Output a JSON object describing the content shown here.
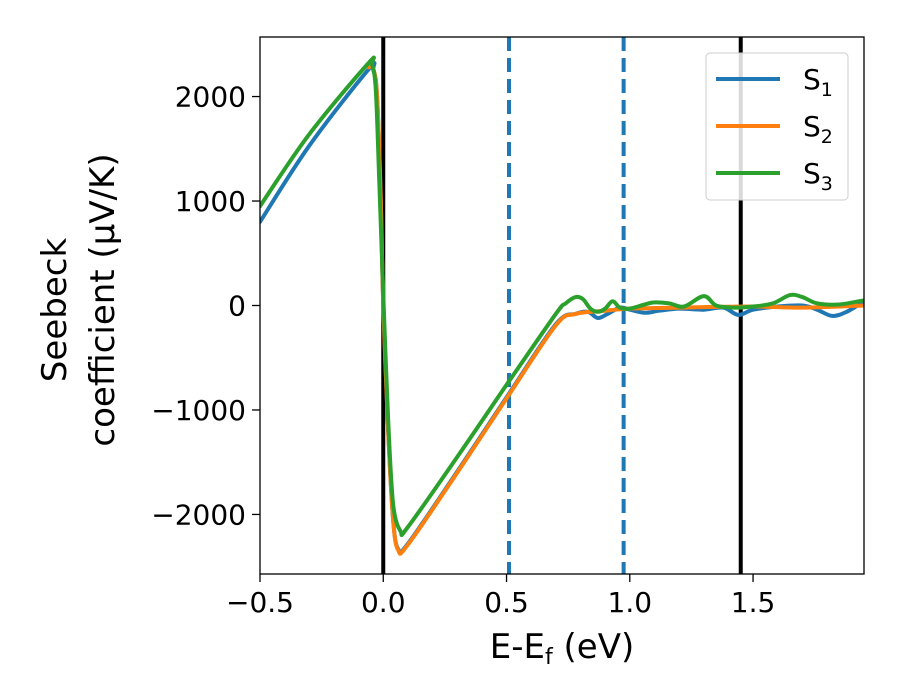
{
  "chart_data": {
    "type": "line",
    "xlabel": "E-E",
    "xlabel_sub": "f",
    "xlabel_unit": " (eV)",
    "ylabel_line1": "Seebeck",
    "ylabel_line2": "coefficient  (μV/K)",
    "xlim": [
      -0.5,
      1.95
    ],
    "ylim": [
      -2570,
      2570
    ],
    "x_ticks": [
      -0.5,
      0.0,
      0.5,
      1.0,
      1.5
    ],
    "x_tick_labels": [
      "−0.5",
      "0.0",
      "0.5",
      "1.0",
      "1.5"
    ],
    "y_ticks": [
      -2000,
      -1000,
      0,
      1000,
      2000
    ],
    "y_tick_labels": [
      "−2000",
      "−1000",
      "0",
      "1000",
      "2000"
    ],
    "grid": false,
    "legend_position": "top-right",
    "vertical_lines": [
      {
        "x": 0.0,
        "style": "solid",
        "color": "#000000"
      },
      {
        "x": 0.51,
        "style": "dashed",
        "color": "#1f77b4"
      },
      {
        "x": 0.975,
        "style": "dashed",
        "color": "#1f77b4"
      },
      {
        "x": 1.45,
        "style": "solid",
        "color": "#000000"
      }
    ],
    "series": [
      {
        "name": "S",
        "sub": "1",
        "color": "#1f77b4",
        "points": [
          [
            -0.5,
            800
          ],
          [
            -0.3,
            1530
          ],
          [
            -0.06,
            2260
          ],
          [
            -0.04,
            2250
          ],
          [
            -0.025,
            2000
          ],
          [
            -0.01,
            1000
          ],
          [
            0.0,
            0
          ],
          [
            0.02,
            -1200
          ],
          [
            0.04,
            -2050
          ],
          [
            0.06,
            -2330
          ],
          [
            0.1,
            -2280
          ],
          [
            0.3,
            -1590
          ],
          [
            0.5,
            -880
          ],
          [
            0.7,
            -180
          ],
          [
            0.78,
            -80
          ],
          [
            0.83,
            -60
          ],
          [
            0.87,
            -120
          ],
          [
            0.91,
            -80
          ],
          [
            0.96,
            -20
          ],
          [
            1.0,
            -40
          ],
          [
            1.06,
            -70
          ],
          [
            1.12,
            -50
          ],
          [
            1.2,
            -30
          ],
          [
            1.3,
            -40
          ],
          [
            1.38,
            -20
          ],
          [
            1.44,
            -90
          ],
          [
            1.5,
            -40
          ],
          [
            1.6,
            -10
          ],
          [
            1.7,
            0
          ],
          [
            1.76,
            -40
          ],
          [
            1.82,
            -100
          ],
          [
            1.88,
            -60
          ],
          [
            1.95,
            40
          ]
        ]
      },
      {
        "name": "S",
        "sub": "2",
        "color": "#ff7f0e",
        "points": [
          [
            -0.06,
            2280
          ],
          [
            -0.04,
            2260
          ],
          [
            -0.025,
            2000
          ],
          [
            -0.01,
            1000
          ],
          [
            0.0,
            0
          ],
          [
            0.02,
            -1200
          ],
          [
            0.04,
            -2050
          ],
          [
            0.06,
            -2340
          ],
          [
            0.1,
            -2290
          ],
          [
            0.3,
            -1600
          ],
          [
            0.5,
            -890
          ],
          [
            0.7,
            -190
          ],
          [
            0.78,
            -80
          ],
          [
            0.9,
            -50
          ],
          [
            1.0,
            -30
          ],
          [
            1.2,
            -20
          ],
          [
            1.5,
            -10
          ],
          [
            1.7,
            -20
          ],
          [
            1.95,
            0
          ]
        ]
      },
      {
        "name": "S",
        "sub": "3",
        "color": "#2ca02c",
        "points": [
          [
            -0.5,
            950
          ],
          [
            -0.3,
            1640
          ],
          [
            -0.06,
            2320
          ],
          [
            -0.045,
            2300
          ],
          [
            -0.03,
            2050
          ],
          [
            -0.015,
            1100
          ],
          [
            0.0,
            100
          ],
          [
            0.02,
            -1100
          ],
          [
            0.04,
            -1900
          ],
          [
            0.07,
            -2160
          ],
          [
            0.1,
            -2120
          ],
          [
            0.3,
            -1450
          ],
          [
            0.5,
            -760
          ],
          [
            0.7,
            -80
          ],
          [
            0.74,
            20
          ],
          [
            0.78,
            80
          ],
          [
            0.81,
            60
          ],
          [
            0.84,
            -30
          ],
          [
            0.87,
            -60
          ],
          [
            0.9,
            -30
          ],
          [
            0.93,
            40
          ],
          [
            0.96,
            -20
          ],
          [
            1.0,
            -30
          ],
          [
            1.06,
            10
          ],
          [
            1.1,
            30
          ],
          [
            1.16,
            20
          ],
          [
            1.22,
            -10
          ],
          [
            1.3,
            90
          ],
          [
            1.35,
            0
          ],
          [
            1.42,
            -20
          ],
          [
            1.5,
            -10
          ],
          [
            1.58,
            20
          ],
          [
            1.65,
            100
          ],
          [
            1.7,
            80
          ],
          [
            1.76,
            20
          ],
          [
            1.85,
            10
          ],
          [
            1.95,
            50
          ]
        ]
      }
    ]
  }
}
